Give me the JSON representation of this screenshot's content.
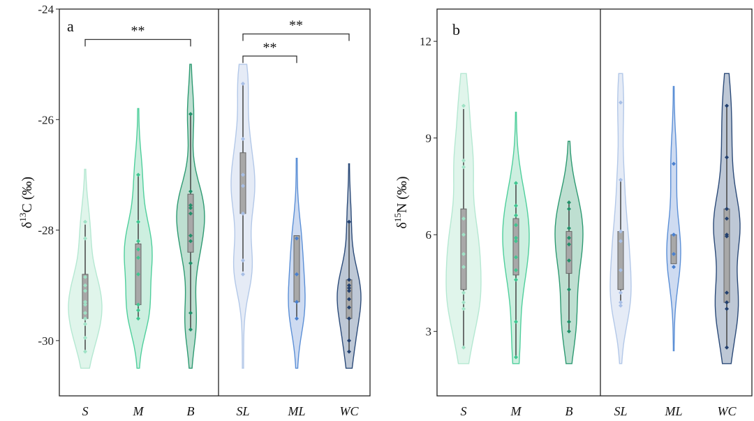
{
  "chart_data": [
    {
      "type": "violin",
      "panel_label": "a",
      "ylabel": {
        "prefix": "δ",
        "sup": "13",
        "suffix": "C (‰)"
      },
      "ylim": [
        -31,
        -24
      ],
      "yticks": [
        -24,
        -26,
        -28,
        -30
      ],
      "grid": false,
      "groups": [
        {
          "name": "S",
          "color_fill": "#daf3e8",
          "color_line": "#b5e8d2",
          "color_point": "#9fe2c6",
          "range": [
            -30.5,
            -26.9
          ],
          "box": [
            -29.6,
            -28.8
          ],
          "whisker": [
            -30.2,
            -27.9
          ],
          "points": [
            -27.85,
            -28.15,
            -28.85,
            -29.0,
            -29.1,
            -29.3,
            -29.35,
            -29.5,
            -29.6,
            -29.7,
            -29.95,
            -30.2
          ]
        },
        {
          "name": "M",
          "color_fill": "#c4ecdb",
          "color_line": "#4fcf9c",
          "color_point": "#3fc690",
          "range": [
            -30.5,
            -25.8
          ],
          "box": [
            -29.35,
            -28.25
          ],
          "whisker": [
            -29.6,
            -27.0
          ],
          "points": [
            -27.0,
            -27.85,
            -28.2,
            -28.35,
            -28.5,
            -28.8,
            -29.35,
            -29.45,
            -29.6
          ]
        },
        {
          "name": "B",
          "color_fill": "#b3d9c9",
          "color_line": "#2e9a72",
          "color_point": "#23906a",
          "range": [
            -30.5,
            -25.0
          ],
          "box": [
            -28.4,
            -27.35
          ],
          "whisker": [
            -29.8,
            -25.9
          ],
          "points": [
            -25.9,
            -27.3,
            -27.55,
            -27.6,
            -27.7,
            -28.1,
            -28.2,
            -28.6,
            -29.5,
            -29.8
          ]
        },
        {
          "name": "SL",
          "color_fill": "#e0e8f4",
          "color_line": "#b3c8e8",
          "color_point": "#a8bfe6",
          "range": [
            -30.5,
            -25.0
          ],
          "box": [
            -27.7,
            -26.6
          ],
          "whisker": [
            -28.75,
            -25.35
          ],
          "points": [
            -25.35,
            -26.35,
            -27.0,
            -27.2,
            -27.7,
            -28.55,
            -28.8
          ]
        },
        {
          "name": "ML",
          "color_fill": "#c5d5ee",
          "color_line": "#5b8fd6",
          "color_point": "#4a80cf",
          "range": [
            -30.5,
            -26.7
          ],
          "box": [
            -29.3,
            -28.1
          ],
          "whisker": [
            -29.6,
            -28.15
          ],
          "points": [
            -28.15,
            -28.8,
            -29.3,
            -29.6
          ]
        },
        {
          "name": "WC",
          "color_fill": "#b3becf",
          "color_line": "#2b4a78",
          "color_point": "#23406e",
          "range": [
            -30.5,
            -26.8
          ],
          "box": [
            -29.6,
            -28.9
          ],
          "whisker": [
            -30.2,
            -27.85
          ],
          "points": [
            -27.85,
            -28.9,
            -29.0,
            -29.05,
            -29.1,
            -29.25,
            -29.4,
            -29.6,
            -30.0,
            -30.2
          ]
        }
      ],
      "significance": [
        {
          "from": "S",
          "to": "B",
          "label": "**",
          "y": -24.55
        },
        {
          "from": "SL",
          "to": "WC",
          "label": "**",
          "y": -24.45
        },
        {
          "from": "SL",
          "to": "ML",
          "label": "**",
          "y": -24.85
        }
      ]
    },
    {
      "type": "violin",
      "panel_label": "b",
      "ylabel": {
        "prefix": "δ",
        "sup": "15",
        "suffix": "N (‰)"
      },
      "ylim": [
        1,
        13
      ],
      "yticks": [
        12,
        9,
        6,
        3
      ],
      "grid": false,
      "groups": [
        {
          "name": "S",
          "color_fill": "#daf3e8",
          "color_line": "#b5e8d2",
          "color_point": "#9fe2c6",
          "range": [
            2,
            11
          ],
          "box": [
            4.3,
            6.8
          ],
          "whisker": [
            2.5,
            9.9
          ],
          "points": [
            10.0,
            8.3,
            8.1,
            6.5,
            6.0,
            5.4,
            5.0,
            4.2,
            3.9,
            3.7,
            2.5
          ]
        },
        {
          "name": "M",
          "color_fill": "#c4ecdb",
          "color_line": "#4fcf9c",
          "color_point": "#3fc690",
          "range": [
            2,
            9.8
          ],
          "box": [
            4.75,
            6.5
          ],
          "whisker": [
            2.2,
            7.6
          ],
          "points": [
            7.6,
            6.9,
            6.6,
            6.3,
            5.9,
            5.8,
            5.3,
            4.9,
            4.6,
            3.3,
            2.2
          ]
        },
        {
          "name": "B",
          "color_fill": "#b3d9c9",
          "color_line": "#2e9a72",
          "color_point": "#23906a",
          "range": [
            2,
            8.9
          ],
          "box": [
            4.8,
            6.1
          ],
          "whisker": [
            3.0,
            7.0
          ],
          "points": [
            7.0,
            6.8,
            6.2,
            5.9,
            5.7,
            5.2,
            4.3,
            3.3,
            3.0
          ]
        },
        {
          "name": "SL",
          "color_fill": "#e0e8f4",
          "color_line": "#b3c8e8",
          "color_point": "#a8bfe6",
          "range": [
            2,
            11
          ],
          "box": [
            4.3,
            6.1
          ],
          "whisker": [
            3.9,
            7.7
          ],
          "points": [
            10.1,
            7.7,
            6.1,
            5.8,
            4.9,
            4.2,
            3.9,
            3.8
          ]
        },
        {
          "name": "ML",
          "color_fill": "#c5d5ee",
          "color_line": "#5b8fd6",
          "color_point": "#4a80cf",
          "range": [
            2.4,
            10.6
          ],
          "box": [
            5.1,
            6.0
          ],
          "whisker": [
            5.1,
            6.0
          ],
          "points": [
            8.2,
            6.0,
            5.4,
            5.0
          ]
        },
        {
          "name": "WC",
          "color_fill": "#b3becf",
          "color_line": "#2b4a78",
          "color_point": "#23406e",
          "range": [
            2,
            11
          ],
          "box": [
            3.9,
            6.8
          ],
          "whisker": [
            2.5,
            10.0
          ],
          "points": [
            10.0,
            8.4,
            6.8,
            6.5,
            6.0,
            5.95,
            4.2,
            3.9,
            3.7,
            2.5
          ]
        }
      ],
      "significance": []
    }
  ]
}
